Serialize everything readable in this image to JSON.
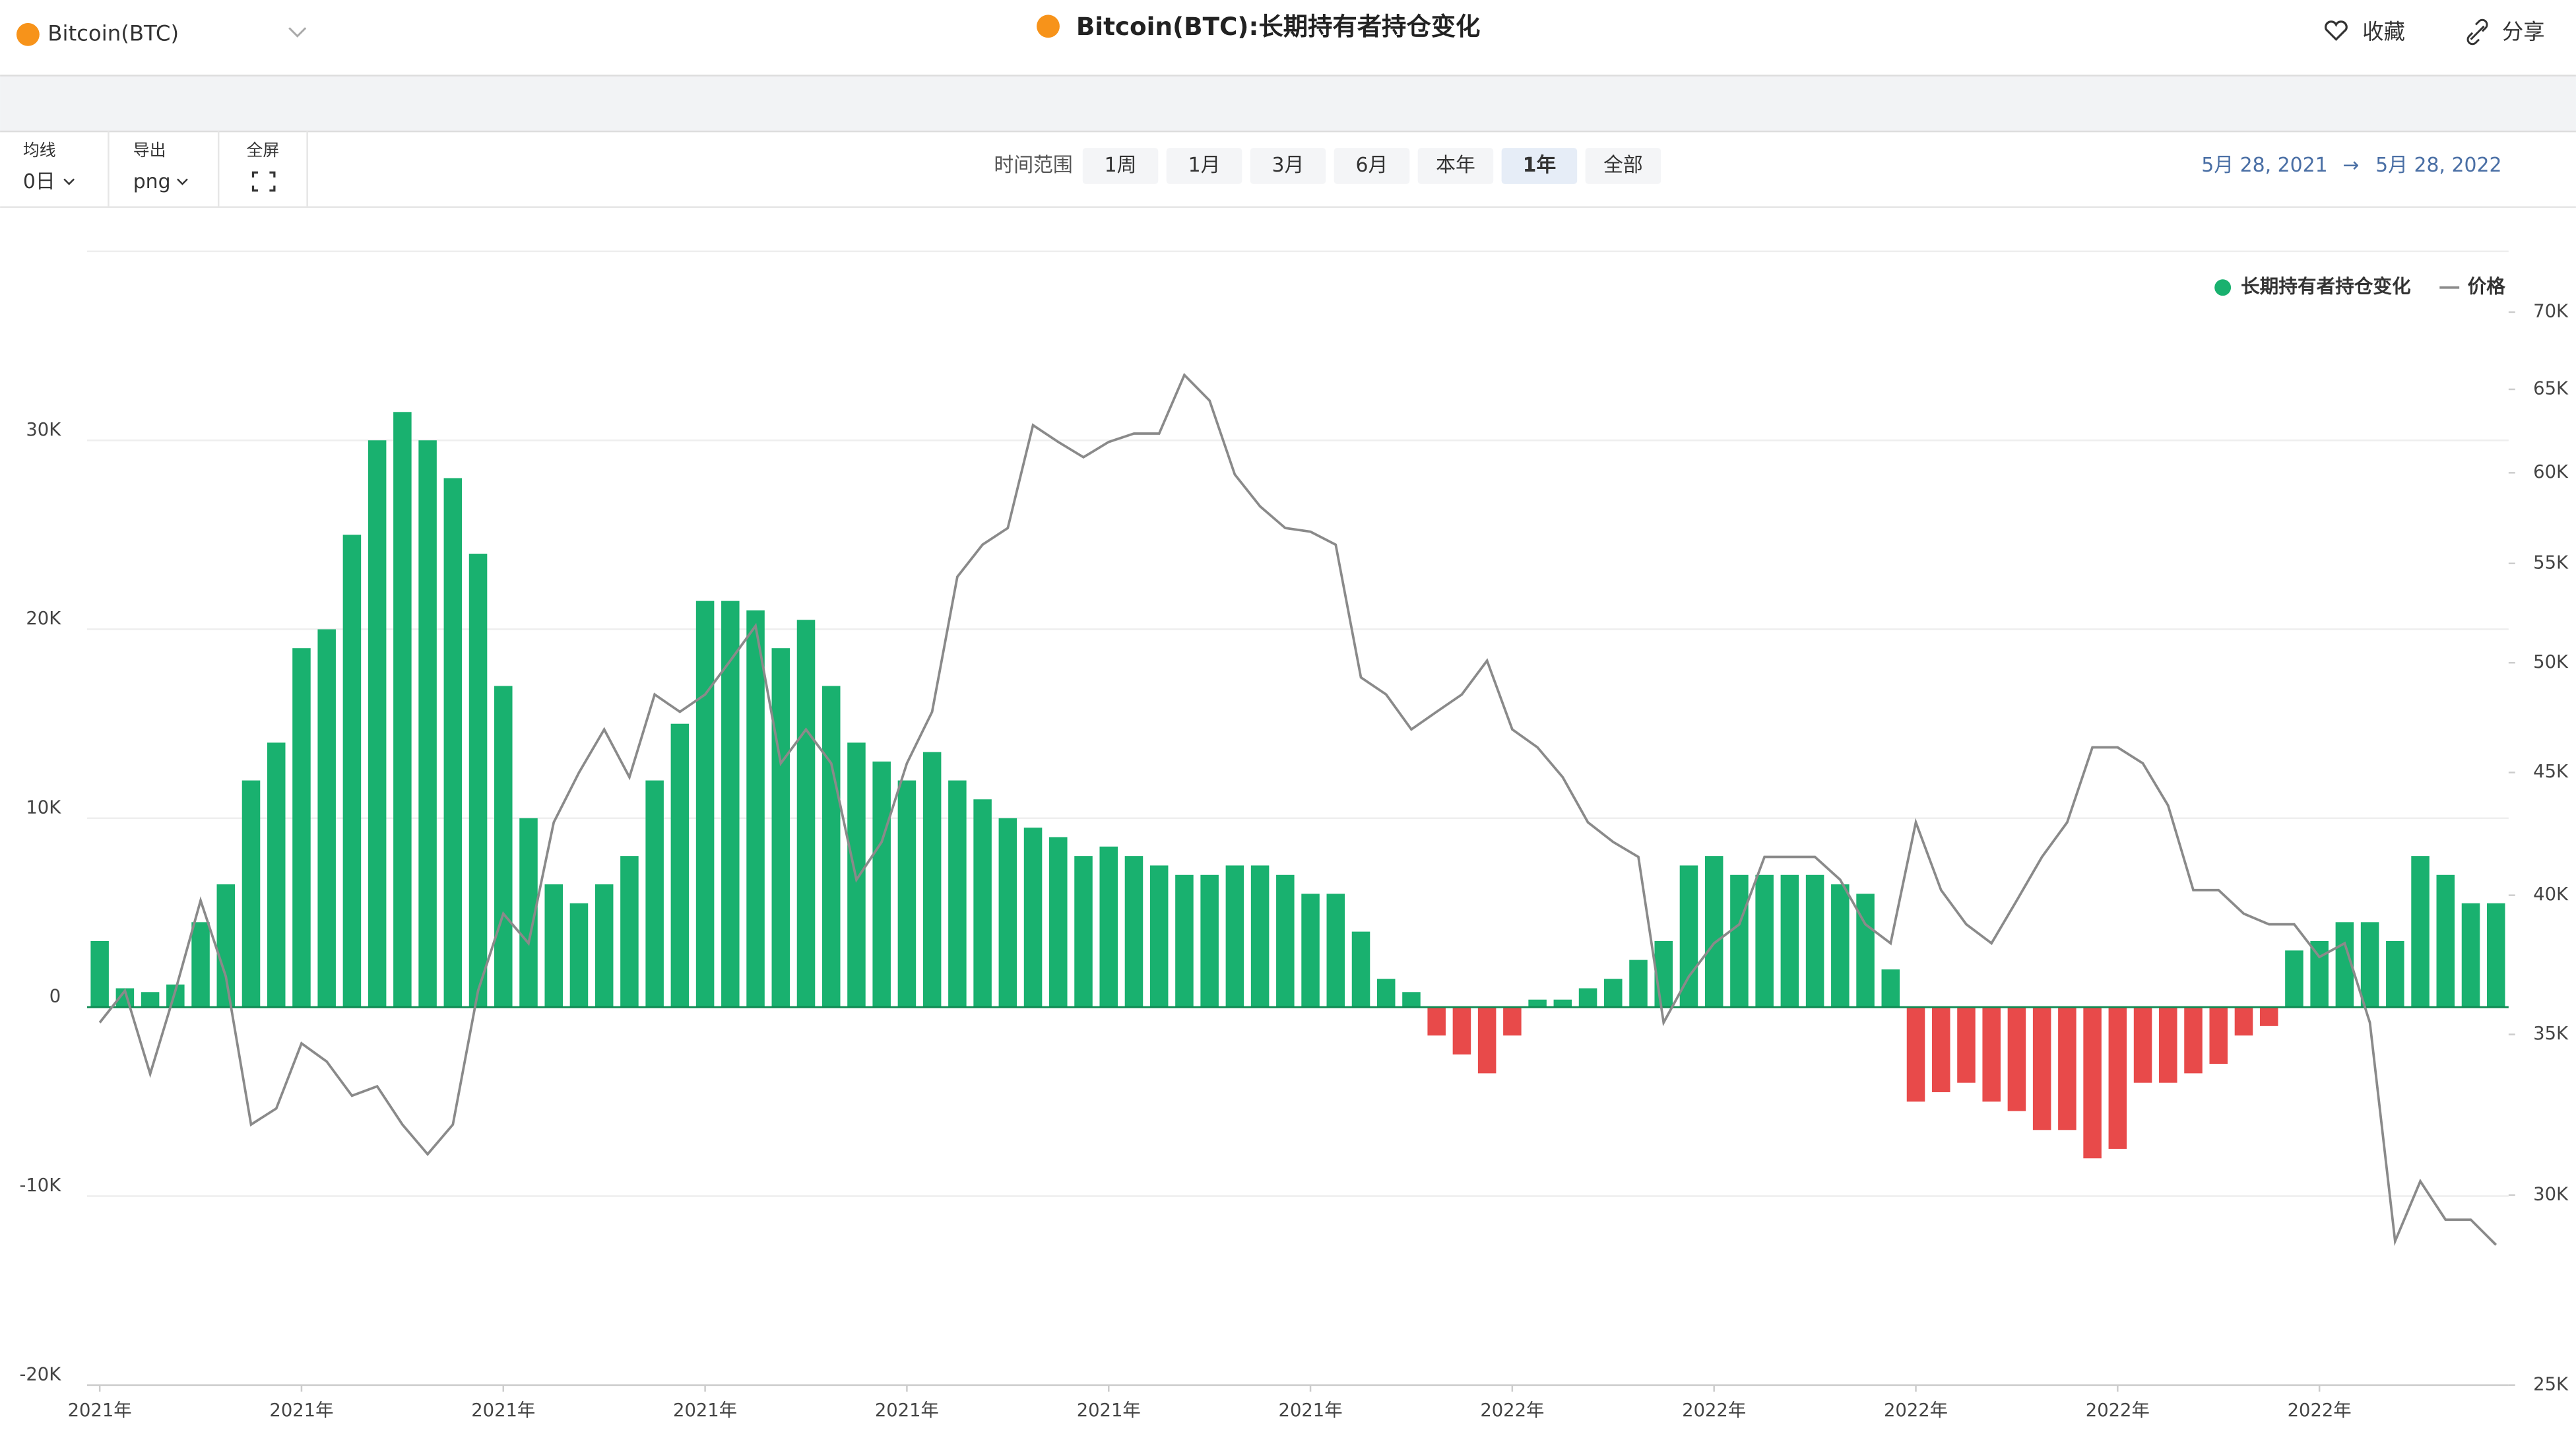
{
  "page": {
    "asset": "Bitcoin(BTC)",
    "actions": [
      "收藏",
      "分享"
    ],
    "tools": [
      {
        "label": "均线",
        "value": "0日"
      },
      {
        "label": "导出",
        "value": "png"
      },
      {
        "label": "全屏"
      }
    ],
    "range_label": "时间范围",
    "ranges": [
      "1周",
      "1月",
      "3月",
      "6月",
      "本年",
      "1年",
      "全部"
    ],
    "active_range": "1年",
    "date_from": "5月 28, 2021",
    "date_arrow": "→",
    "date_to": "5月 28, 2022"
  },
  "chart_data": {
    "type": "bar",
    "title": "Bitcoin(BTC):长期持有者持仓变化",
    "categories": [
      "2021年",
      null,
      null,
      null,
      null,
      null,
      null,
      null,
      "2021年",
      null,
      null,
      null,
      null,
      null,
      null,
      null,
      "2021年",
      null,
      null,
      null,
      null,
      null,
      null,
      null,
      "2021年",
      null,
      null,
      null,
      null,
      null,
      null,
      null,
      "2021年",
      null,
      null,
      null,
      null,
      null,
      null,
      null,
      "2021年",
      null,
      null,
      null,
      null,
      null,
      null,
      null,
      "2021年",
      null,
      null,
      null,
      null,
      null,
      null,
      null,
      "2022年",
      null,
      null,
      null,
      null,
      null,
      null,
      null,
      "2022年",
      null,
      null,
      null,
      null,
      null,
      null,
      null,
      "2022年",
      null,
      null,
      null,
      null,
      null,
      null,
      null,
      "2022年",
      null,
      null,
      null,
      null,
      null,
      null,
      null,
      "2022年",
      null,
      null,
      null,
      null,
      null,
      null,
      null
    ],
    "series": [
      {
        "name": "长期持有者持仓变化",
        "color": "#19b16f",
        "negative_color": "#e84a4a",
        "values": [
          3500,
          1000,
          800,
          1200,
          4500,
          6500,
          12000,
          14000,
          19000,
          20000,
          25000,
          30000,
          31500,
          30000,
          28000,
          24000,
          17000,
          10000,
          6500,
          5500,
          6500,
          8000,
          12000,
          15000,
          21500,
          21500,
          21000,
          19000,
          20500,
          17000,
          14000,
          13000,
          12000,
          13500,
          12000,
          11000,
          10000,
          9500,
          9000,
          8000,
          8500,
          8000,
          7500,
          7000,
          7000,
          7500,
          7500,
          7000,
          6000,
          6000,
          4000,
          1500,
          800,
          -1500,
          -2500,
          -3500,
          -1500,
          400,
          400,
          1000,
          1500,
          2500,
          3500,
          7500,
          8000,
          7000,
          7000,
          7000,
          7000,
          6500,
          6000,
          2000,
          -5000,
          -4500,
          -4000,
          -5000,
          -5500,
          -6500,
          -6500,
          -8000,
          -7500,
          -4000,
          -4000,
          -3500,
          -3000,
          -1500,
          -1000,
          3000,
          3500,
          4500,
          4500,
          3500,
          8000,
          7000,
          5500,
          5500
        ]
      },
      {
        "name": "价格",
        "type": "line",
        "axis": "y2",
        "color": "#8a8a8a",
        "values": [
          35400,
          36500,
          33700,
          36500,
          39800,
          37000,
          32100,
          32600,
          34700,
          34100,
          33000,
          33300,
          32100,
          31200,
          32100,
          36500,
          39300,
          38200,
          42900,
          45000,
          46900,
          44800,
          48500,
          47700,
          48500,
          50100,
          51800,
          45400,
          46900,
          45400,
          40600,
          42100,
          45400,
          47700,
          54300,
          56000,
          56900,
          62800,
          61800,
          60900,
          61800,
          62300,
          62300,
          65900,
          64300,
          59900,
          58100,
          56900,
          56700,
          56000,
          49300,
          48500,
          46900,
          47700,
          48500,
          50100,
          46900,
          46100,
          44800,
          42900,
          42100,
          41500,
          35400,
          37000,
          38200,
          38900,
          41500,
          41500,
          41500,
          40600,
          38900,
          38200,
          42900,
          40200,
          38900,
          38200,
          39800,
          41500,
          42900,
          46100,
          46100,
          45400,
          43600,
          40200,
          40200,
          39300,
          38900,
          38900,
          37700,
          38200,
          35400,
          28700,
          30400,
          29300,
          29300,
          28600
        ]
      }
    ],
    "ylim": [
      -20000,
      40000
    ],
    "yticks": [
      {
        "value": -20000,
        "label": "-20K"
      },
      {
        "value": -10000,
        "label": "-10K"
      },
      0,
      {
        "value": 10000,
        "label": "10K"
      },
      {
        "value": 20000,
        "label": "20K"
      },
      {
        "value": 30000,
        "label": "30K"
      }
    ],
    "y2lim": [
      25000,
      74200
    ],
    "y2log": true,
    "y2ticks": [
      {
        "value": 25000,
        "label": "25K"
      },
      {
        "value": 30000,
        "label": "30K"
      },
      {
        "value": 35000,
        "label": "35K"
      },
      {
        "value": 40000,
        "label": "40K"
      },
      {
        "value": 45000,
        "label": "45K"
      },
      {
        "value": 50000,
        "label": "50K"
      },
      {
        "value": 55000,
        "label": "55K"
      },
      {
        "value": 60000,
        "label": "60K"
      },
      {
        "value": 65000,
        "label": "65K"
      },
      {
        "value": 70000,
        "label": "70K"
      }
    ],
    "grid": true,
    "legend": "top-right"
  }
}
